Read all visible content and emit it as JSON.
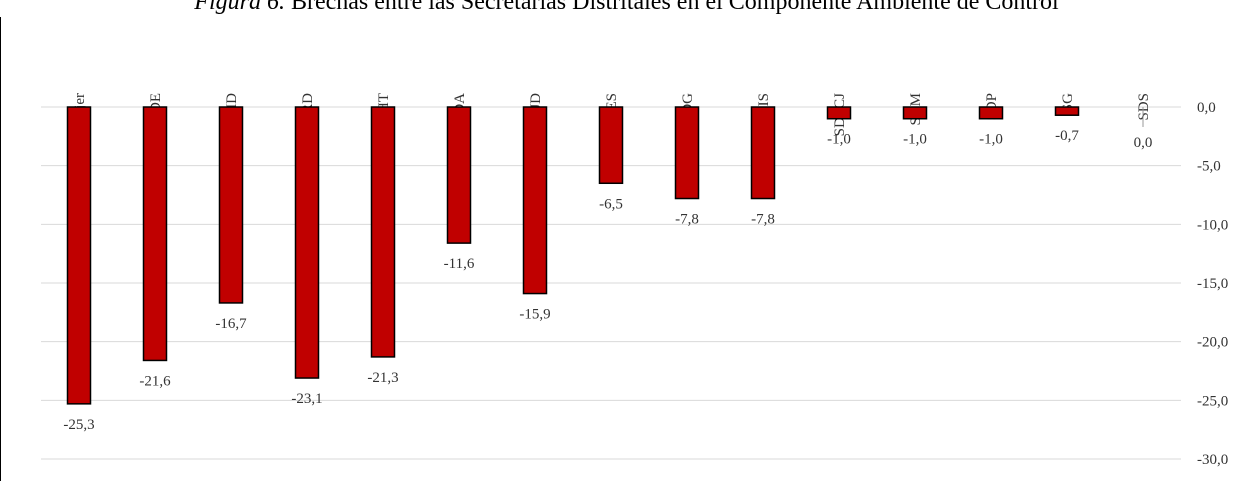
{
  "caption": {
    "figure_number": "Figura 6.",
    "text": "Brechas entre las Secretarías Distritales en el Componente Ambiente de Control"
  },
  "chart_data": {
    "type": "bar",
    "title": "",
    "xlabel": "",
    "ylabel": "",
    "categories": [
      "SDMujer",
      "SDDE",
      "SHD",
      "SDCRD",
      "SDHT",
      "SDA",
      "SJD",
      "SES",
      "SDG",
      "SDIS",
      "SDSCJ",
      "SDM",
      "SDP",
      "SG",
      "SDS"
    ],
    "values": [
      -25.3,
      -21.6,
      -16.7,
      -23.1,
      -21.3,
      -11.6,
      -15.9,
      -6.5,
      -7.8,
      -7.8,
      -1.0,
      -1.0,
      -1.0,
      -0.7,
      0.0
    ],
    "value_labels": [
      "-25,3",
      "-21,6",
      "-16,7",
      "-23,1",
      "-21,3",
      "-11,6",
      "-15,9",
      "-6,5",
      "-7,8",
      "-7,8",
      "-1,0",
      "-1,0",
      "-1,0",
      "-0,7",
      "0,0"
    ],
    "ylim": [
      -30,
      0
    ],
    "yticks": [
      0,
      -5,
      -10,
      -15,
      -20,
      -25,
      -30
    ],
    "ytick_labels": [
      "0,0",
      "-5,0",
      "-10,0",
      "-15,0",
      "-20,0",
      "-25,0",
      "-30,0"
    ],
    "y_axis_side": "right",
    "category_labels_position": "top-rotated",
    "grid": true,
    "legend": "none",
    "bar_color": "#C00000",
    "bar_outline": "#000000",
    "grid_color": "#D9D9D9"
  }
}
